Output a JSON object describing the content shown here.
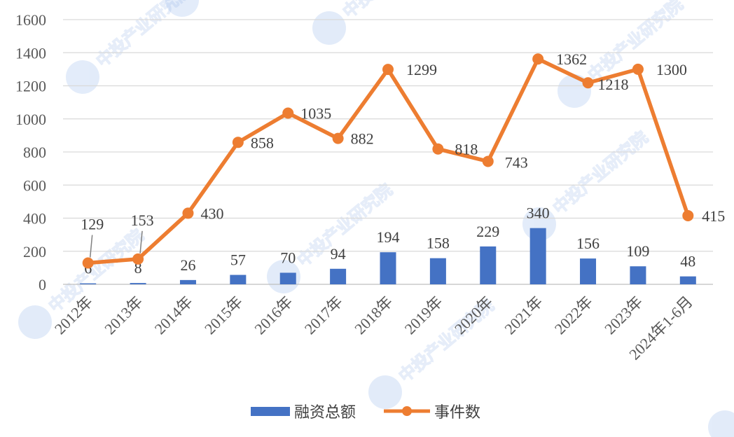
{
  "chart_data": {
    "type": "bar+line",
    "categories": [
      "2012年",
      "2013年",
      "2014年",
      "2015年",
      "2016年",
      "2017年",
      "2018年",
      "2019年",
      "2020年",
      "2021年",
      "2022年",
      "2023年",
      "2024年1-6月"
    ],
    "series": [
      {
        "name": "融资总额",
        "type": "bar",
        "values": [
          6,
          8,
          26,
          57,
          70,
          94,
          194,
          158,
          229,
          340,
          156,
          109,
          48
        ]
      },
      {
        "name": "事件数",
        "type": "line",
        "values": [
          129,
          153,
          430,
          858,
          1035,
          882,
          1299,
          818,
          743,
          1362,
          1218,
          1300,
          415
        ]
      }
    ],
    "yticks": [
      0,
      200,
      400,
      600,
      800,
      1000,
      1200,
      1400,
      1600
    ],
    "ylim": [
      0,
      1600
    ],
    "grid": true,
    "legend_position": "bottom",
    "colors": {
      "bar": "#4472C4",
      "line": "#ED7D31",
      "grid": "#D9D9D9"
    },
    "watermark": "中投产业研究院"
  }
}
